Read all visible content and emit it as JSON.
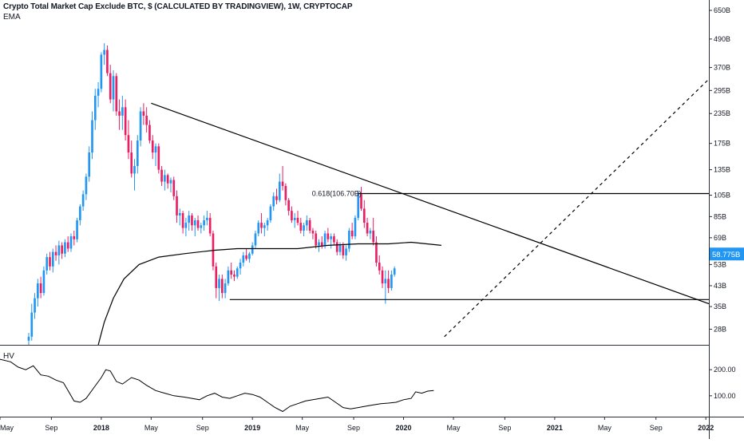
{
  "title": "Crypto Total Market Cap Exclude BTC, $ (CALCULATED BY TRADINGVIEW), 1W, CRYPTOCAP",
  "indicator_label": "EMA",
  "hv_label": "HV",
  "colors": {
    "up": "#2196f3",
    "down": "#e91e63",
    "line": "#000000",
    "price_badge": "#2196f3",
    "axis_text": "#131722",
    "grid": "#2a2e39"
  },
  "chart_data": {
    "type": "line",
    "price_axis": {
      "scale": "log",
      "ticks": [
        "650B",
        "490B",
        "370B",
        "295B",
        "235B",
        "175B",
        "135B",
        "105B",
        "85B",
        "69B",
        "53B",
        "43B",
        "35B",
        "28B"
      ],
      "values": [
        650,
        490,
        370,
        295,
        235,
        175,
        135,
        105,
        85,
        69,
        53,
        43,
        35,
        28
      ],
      "range": [
        24,
        720
      ],
      "last_price_label": "58.775B",
      "last_price": 58.775
    },
    "time_axis": {
      "labels": [
        "May",
        "Sep",
        "2018",
        "May",
        "Sep",
        "2019",
        "May",
        "Sep",
        "2020",
        "May",
        "Sep",
        "2021",
        "May",
        "Sep",
        "2022"
      ],
      "values": [
        2017.33,
        2017.67,
        2018.0,
        2018.33,
        2018.67,
        2019.0,
        2019.33,
        2019.67,
        2020.0,
        2020.33,
        2020.67,
        2021.0,
        2021.33,
        2021.67,
        2022.0
      ],
      "range": [
        2017.33,
        2022.02
      ]
    },
    "ema_label": "EMA",
    "ema": [
      [
        2017.98,
        24
      ],
      [
        2018.02,
        30
      ],
      [
        2018.08,
        38
      ],
      [
        2018.15,
        46
      ],
      [
        2018.25,
        53
      ],
      [
        2018.38,
        57
      ],
      [
        2018.55,
        59
      ],
      [
        2018.75,
        61
      ],
      [
        2018.9,
        62
      ],
      [
        2019.1,
        62
      ],
      [
        2019.3,
        62
      ],
      [
        2019.5,
        64
      ],
      [
        2019.7,
        65
      ],
      [
        2019.9,
        65
      ],
      [
        2020.05,
        66
      ],
      [
        2020.25,
        64
      ]
    ],
    "candles": [
      [
        2017.52,
        25,
        27,
        24,
        26
      ],
      [
        2017.54,
        26,
        36,
        25,
        33
      ],
      [
        2017.56,
        33,
        40,
        31,
        38
      ],
      [
        2017.58,
        38,
        46,
        35,
        44
      ],
      [
        2017.6,
        44,
        47,
        38,
        40
      ],
      [
        2017.62,
        40,
        52,
        39,
        50
      ],
      [
        2017.64,
        50,
        59,
        48,
        57
      ],
      [
        2017.66,
        57,
        60,
        50,
        52
      ],
      [
        2017.68,
        52,
        62,
        49,
        60
      ],
      [
        2017.7,
        60,
        64,
        55,
        58
      ],
      [
        2017.72,
        58,
        67,
        53,
        64
      ],
      [
        2017.74,
        64,
        66,
        56,
        59
      ],
      [
        2017.76,
        59,
        68,
        57,
        66
      ],
      [
        2017.78,
        66,
        70,
        60,
        62
      ],
      [
        2017.8,
        62,
        72,
        60,
        70
      ],
      [
        2017.82,
        70,
        74,
        64,
        68
      ],
      [
        2017.84,
        68,
        84,
        66,
        82
      ],
      [
        2017.86,
        82,
        96,
        78,
        94
      ],
      [
        2017.88,
        94,
        110,
        90,
        106
      ],
      [
        2017.9,
        106,
        130,
        100,
        126
      ],
      [
        2017.92,
        126,
        170,
        120,
        160
      ],
      [
        2017.94,
        160,
        240,
        150,
        220
      ],
      [
        2017.96,
        220,
        300,
        200,
        280
      ],
      [
        2017.98,
        280,
        320,
        250,
        300
      ],
      [
        2018.0,
        300,
        430,
        290,
        420
      ],
      [
        2018.02,
        420,
        470,
        380,
        440
      ],
      [
        2018.04,
        440,
        460,
        340,
        350
      ],
      [
        2018.06,
        350,
        380,
        260,
        270
      ],
      [
        2018.08,
        270,
        360,
        240,
        340
      ],
      [
        2018.1,
        340,
        350,
        230,
        240
      ],
      [
        2018.12,
        240,
        270,
        200,
        230
      ],
      [
        2018.14,
        230,
        280,
        200,
        250
      ],
      [
        2018.16,
        250,
        270,
        180,
        190
      ],
      [
        2018.18,
        190,
        220,
        150,
        160
      ],
      [
        2018.2,
        160,
        180,
        125,
        130
      ],
      [
        2018.22,
        130,
        150,
        110,
        140
      ],
      [
        2018.24,
        140,
        190,
        130,
        180
      ],
      [
        2018.26,
        180,
        250,
        170,
        240
      ],
      [
        2018.28,
        240,
        260,
        210,
        230
      ],
      [
        2018.3,
        230,
        250,
        195,
        210
      ],
      [
        2018.32,
        210,
        220,
        175,
        180
      ],
      [
        2018.34,
        180,
        190,
        150,
        160
      ],
      [
        2018.36,
        160,
        175,
        140,
        170
      ],
      [
        2018.38,
        170,
        175,
        130,
        135
      ],
      [
        2018.4,
        135,
        140,
        115,
        120
      ],
      [
        2018.42,
        120,
        135,
        110,
        128
      ],
      [
        2018.44,
        128,
        130,
        112,
        118
      ],
      [
        2018.46,
        118,
        125,
        108,
        122
      ],
      [
        2018.48,
        122,
        126,
        100,
        104
      ],
      [
        2018.5,
        104,
        110,
        80,
        86
      ],
      [
        2018.52,
        86,
        92,
        78,
        88
      ],
      [
        2018.54,
        88,
        90,
        72,
        76
      ],
      [
        2018.56,
        76,
        84,
        70,
        80
      ],
      [
        2018.58,
        80,
        90,
        74,
        86
      ],
      [
        2018.6,
        86,
        88,
        74,
        78
      ],
      [
        2018.62,
        78,
        84,
        70,
        82
      ],
      [
        2018.64,
        82,
        86,
        74,
        76
      ],
      [
        2018.66,
        76,
        80,
        72,
        78
      ],
      [
        2018.68,
        78,
        86,
        74,
        82
      ],
      [
        2018.7,
        82,
        90,
        78,
        84
      ],
      [
        2018.72,
        84,
        88,
        70,
        72
      ],
      [
        2018.74,
        72,
        74,
        50,
        52
      ],
      [
        2018.76,
        52,
        54,
        38,
        42
      ],
      [
        2018.78,
        42,
        48,
        37,
        46
      ],
      [
        2018.8,
        46,
        48,
        38,
        40
      ],
      [
        2018.82,
        40,
        46,
        38,
        44
      ],
      [
        2018.84,
        44,
        52,
        43,
        50
      ],
      [
        2018.86,
        50,
        54,
        46,
        48
      ],
      [
        2018.88,
        48,
        50,
        45,
        47
      ],
      [
        2018.9,
        47,
        52,
        46,
        51
      ],
      [
        2018.92,
        51,
        56,
        48,
        54
      ],
      [
        2018.94,
        54,
        60,
        52,
        58
      ],
      [
        2018.96,
        58,
        62,
        55,
        56
      ],
      [
        2018.98,
        56,
        60,
        54,
        59
      ],
      [
        2019.0,
        59,
        66,
        58,
        64
      ],
      [
        2019.02,
        64,
        74,
        62,
        72
      ],
      [
        2019.04,
        72,
        82,
        70,
        80
      ],
      [
        2019.06,
        80,
        88,
        72,
        76
      ],
      [
        2019.08,
        76,
        80,
        70,
        78
      ],
      [
        2019.1,
        78,
        84,
        74,
        82
      ],
      [
        2019.12,
        82,
        96,
        80,
        94
      ],
      [
        2019.14,
        94,
        108,
        90,
        104
      ],
      [
        2019.16,
        104,
        112,
        96,
        100
      ],
      [
        2019.18,
        100,
        130,
        98,
        120
      ],
      [
        2019.2,
        120,
        140,
        110,
        115
      ],
      [
        2019.22,
        115,
        118,
        95,
        100
      ],
      [
        2019.24,
        100,
        102,
        86,
        90
      ],
      [
        2019.26,
        90,
        94,
        80,
        82
      ],
      [
        2019.28,
        82,
        88,
        76,
        84
      ],
      [
        2019.3,
        84,
        90,
        78,
        80
      ],
      [
        2019.32,
        80,
        84,
        72,
        74
      ],
      [
        2019.34,
        74,
        80,
        70,
        78
      ],
      [
        2019.36,
        78,
        86,
        74,
        82
      ],
      [
        2019.38,
        82,
        84,
        72,
        74
      ],
      [
        2019.4,
        74,
        76,
        68,
        72
      ],
      [
        2019.42,
        72,
        74,
        62,
        64
      ],
      [
        2019.44,
        64,
        68,
        60,
        66
      ],
      [
        2019.46,
        66,
        70,
        62,
        64
      ],
      [
        2019.48,
        64,
        74,
        62,
        72
      ],
      [
        2019.5,
        72,
        76,
        66,
        68
      ],
      [
        2019.52,
        68,
        72,
        62,
        70
      ],
      [
        2019.54,
        70,
        72,
        64,
        66
      ],
      [
        2019.56,
        66,
        68,
        58,
        60
      ],
      [
        2019.58,
        60,
        66,
        58,
        64
      ],
      [
        2019.6,
        64,
        66,
        56,
        58
      ],
      [
        2019.62,
        58,
        64,
        55,
        62
      ],
      [
        2019.64,
        62,
        76,
        60,
        74
      ],
      [
        2019.66,
        74,
        80,
        68,
        70
      ],
      [
        2019.68,
        70,
        86,
        68,
        84
      ],
      [
        2019.7,
        84,
        110,
        82,
        106
      ],
      [
        2019.72,
        106,
        114,
        90,
        92
      ],
      [
        2019.74,
        92,
        100,
        76,
        80
      ],
      [
        2019.76,
        80,
        84,
        70,
        72
      ],
      [
        2019.78,
        72,
        76,
        68,
        74
      ],
      [
        2019.8,
        74,
        84,
        64,
        66
      ],
      [
        2019.82,
        66,
        70,
        52,
        54
      ],
      [
        2019.84,
        54,
        58,
        48,
        50
      ],
      [
        2019.86,
        50,
        52,
        42,
        44
      ],
      [
        2019.88,
        44,
        50,
        36,
        46
      ],
      [
        2019.9,
        46,
        50,
        40,
        42
      ],
      [
        2019.92,
        42,
        50,
        41,
        48
      ],
      [
        2019.94,
        48,
        52,
        47,
        51
      ]
    ],
    "fib_label": "0.618(106.70B)",
    "annotations": {
      "fib_level": 106.7,
      "support_level": 37.5,
      "downtrend": [
        [
          2018.33,
          260
        ],
        [
          2022.02,
          36
        ]
      ],
      "horizontal_resistance": [
        [
          2019.7,
          106.7
        ],
        [
          2022.02,
          106.7
        ]
      ],
      "horizontal_support": [
        [
          2018.85,
          37.5
        ],
        [
          2022.02,
          37.5
        ]
      ],
      "dashed_diagonal": [
        [
          2020.27,
          26
        ],
        [
          2022.02,
          330
        ]
      ]
    },
    "hv_axis": {
      "ticks": [
        "200.00",
        "100.00"
      ],
      "values": [
        200,
        100
      ],
      "range": [
        20,
        280
      ]
    },
    "hv": [
      [
        2017.33,
        240
      ],
      [
        2017.4,
        230
      ],
      [
        2017.45,
        210
      ],
      [
        2017.5,
        200
      ],
      [
        2017.55,
        215
      ],
      [
        2017.6,
        180
      ],
      [
        2017.65,
        175
      ],
      [
        2017.7,
        160
      ],
      [
        2017.75,
        150
      ],
      [
        2017.78,
        120
      ],
      [
        2017.82,
        80
      ],
      [
        2017.86,
        75
      ],
      [
        2017.9,
        90
      ],
      [
        2017.95,
        130
      ],
      [
        2018.0,
        170
      ],
      [
        2018.03,
        200
      ],
      [
        2018.06,
        195
      ],
      [
        2018.1,
        155
      ],
      [
        2018.14,
        145
      ],
      [
        2018.2,
        170
      ],
      [
        2018.25,
        160
      ],
      [
        2018.3,
        140
      ],
      [
        2018.36,
        120
      ],
      [
        2018.42,
        110
      ],
      [
        2018.48,
        100
      ],
      [
        2018.55,
        95
      ],
      [
        2018.6,
        90
      ],
      [
        2018.65,
        85
      ],
      [
        2018.7,
        100
      ],
      [
        2018.75,
        110
      ],
      [
        2018.8,
        95
      ],
      [
        2018.85,
        90
      ],
      [
        2018.9,
        100
      ],
      [
        2018.95,
        110
      ],
      [
        2019.0,
        105
      ],
      [
        2019.05,
        95
      ],
      [
        2019.1,
        75
      ],
      [
        2019.15,
        55
      ],
      [
        2019.2,
        40
      ],
      [
        2019.25,
        60
      ],
      [
        2019.3,
        70
      ],
      [
        2019.35,
        80
      ],
      [
        2019.4,
        85
      ],
      [
        2019.45,
        90
      ],
      [
        2019.5,
        95
      ],
      [
        2019.55,
        75
      ],
      [
        2019.6,
        55
      ],
      [
        2019.65,
        50
      ],
      [
        2019.7,
        55
      ],
      [
        2019.75,
        60
      ],
      [
        2019.8,
        65
      ],
      [
        2019.85,
        70
      ],
      [
        2019.9,
        72
      ],
      [
        2019.95,
        75
      ],
      [
        2020.0,
        85
      ],
      [
        2020.05,
        90
      ],
      [
        2020.08,
        115
      ],
      [
        2020.12,
        110
      ],
      [
        2020.16,
        118
      ],
      [
        2020.2,
        120
      ]
    ]
  }
}
